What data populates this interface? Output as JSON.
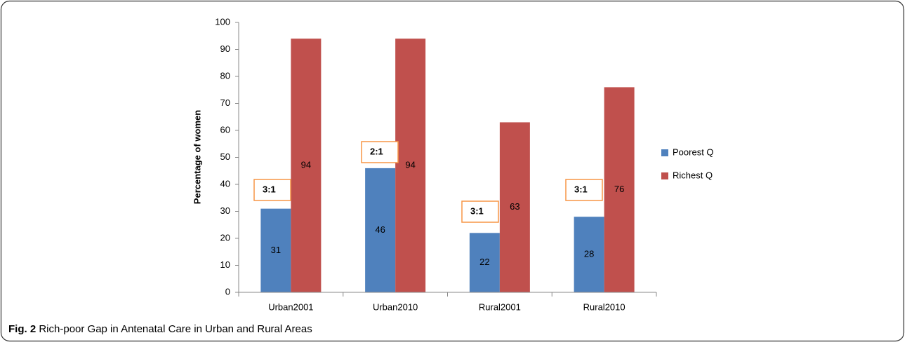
{
  "chart_data": {
    "type": "bar",
    "y_label": "Percentage of women",
    "categories": [
      "Urban2001",
      "Urban2010",
      "Rural2001",
      "Rural2010"
    ],
    "series": [
      {
        "name": "Poorest Q",
        "color": "#4f81bd",
        "values": [
          31,
          46,
          22,
          28
        ]
      },
      {
        "name": "Richest Q",
        "color": "#c0504d",
        "values": [
          94,
          94,
          63,
          76
        ]
      }
    ],
    "annotations": [
      "3:1",
      "2:1",
      "3:1",
      "3:1"
    ],
    "ylim": [
      0,
      100
    ],
    "yticks": [
      0,
      10,
      20,
      30,
      40,
      50,
      60,
      70,
      80,
      90,
      100
    ],
    "grid": false,
    "legend": "right"
  },
  "caption": {
    "label": "Fig. 2",
    "text": "Rich-poor Gap in Antenatal Care in Urban and Rural Areas"
  }
}
